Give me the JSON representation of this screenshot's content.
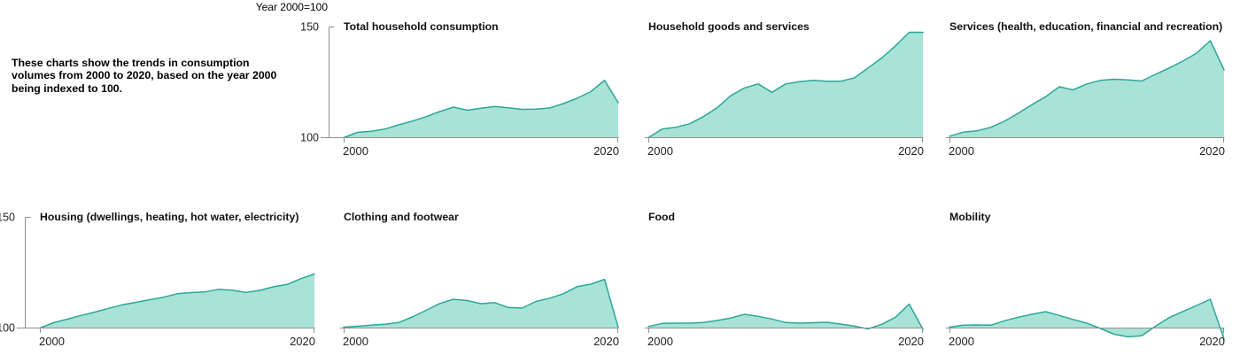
{
  "intro": {
    "text": "These charts show the trends in consumption volumes from 2000 to 2020, based on the year 2000 being indexed to 100."
  },
  "axis_note": "Year 2000=100",
  "colors": {
    "area_fill": "#a8e3d6",
    "area_line": "#2ba79a",
    "axis": "#8f8f8f",
    "tick_label": "#222222",
    "title": "#111111"
  },
  "y_axis": {
    "ticks": [
      "150",
      "100"
    ],
    "min": 100,
    "max": 150
  },
  "x_axis": {
    "ticks": [
      "2000",
      "2020"
    ],
    "min": 2000,
    "max": 2020
  },
  "chart_data": [
    {
      "type": "area",
      "title": "Total household consumption",
      "x_range": [
        2000,
        2020
      ],
      "ylim": [
        100,
        150
      ],
      "values": [
        100,
        102.4,
        102.9,
        103.9,
        105.8,
        107.5,
        109.5,
        111.8,
        113.8,
        112.4,
        113.3,
        114.1,
        113.5,
        112.8,
        112.9,
        113.4,
        115.4,
        117.8,
        120.8,
        125.9,
        115.8
      ]
    },
    {
      "type": "area",
      "title": "Household goods and services",
      "x_range": [
        2000,
        2020
      ],
      "ylim": [
        100,
        150
      ],
      "values": [
        100,
        103.9,
        104.7,
        106.3,
        109.5,
        113.5,
        118.9,
        122.5,
        124.3,
        120.5,
        124.3,
        125.3,
        125.9,
        125.5,
        125.5,
        127,
        131.5,
        136,
        141.5,
        147.6,
        147.6
      ]
    },
    {
      "type": "area",
      "title": "Services (health, education, financial and recreation)",
      "x_range": [
        2000,
        2020
      ],
      "ylim": [
        100,
        150
      ],
      "values": [
        100.7,
        102.5,
        103.1,
        104.7,
        107.4,
        111,
        114.9,
        118.5,
        123,
        121.6,
        124.3,
        125.9,
        126.4,
        126.1,
        125.6,
        128.6,
        131.5,
        134.6,
        138.2,
        143.8,
        130.6
      ]
    },
    {
      "type": "area",
      "title": "Housing (dwellings, heating, hot water, electricity)",
      "x_range": [
        2000,
        2020
      ],
      "ylim": [
        100,
        150
      ],
      "values": [
        100,
        102.4,
        104,
        105.7,
        107.2,
        108.9,
        110.5,
        111.6,
        112.8,
        113.9,
        115.5,
        116,
        116.3,
        117.5,
        117.1,
        116.1,
        117,
        118.6,
        119.7,
        122.3,
        124.4
      ]
    },
    {
      "type": "area",
      "title": "Clothing and footwear",
      "x_range": [
        2000,
        2020
      ],
      "ylim": [
        100,
        150
      ],
      "values": [
        100.4,
        100.8,
        101.3,
        101.7,
        102.5,
        105,
        108,
        111.1,
        113,
        112.4,
        111,
        111.5,
        109.3,
        109,
        112,
        113.5,
        115.5,
        118.7,
        119.8,
        122,
        100.3
      ]
    },
    {
      "type": "area",
      "title": "Food",
      "x_range": [
        2000,
        2020
      ],
      "ylim": [
        100,
        150
      ],
      "values": [
        100.7,
        102.1,
        102.2,
        102.2,
        102.5,
        103.4,
        104.5,
        106.2,
        105.3,
        104.1,
        102.5,
        102.2,
        102.4,
        102.6,
        101.8,
        100.9,
        99.6,
        101.7,
        104.9,
        110.8,
        99.4
      ]
    },
    {
      "type": "area",
      "title": "Mobility",
      "x_range": [
        2000,
        2020
      ],
      "ylim": [
        100,
        150
      ],
      "values": [
        100.4,
        101.3,
        101.4,
        101.3,
        103.3,
        104.9,
        106.2,
        107.4,
        105.7,
        103.9,
        102.2,
        99.8,
        97.2,
        96,
        96.5,
        100.8,
        104.7,
        107.5,
        110.2,
        113,
        95
      ]
    }
  ]
}
